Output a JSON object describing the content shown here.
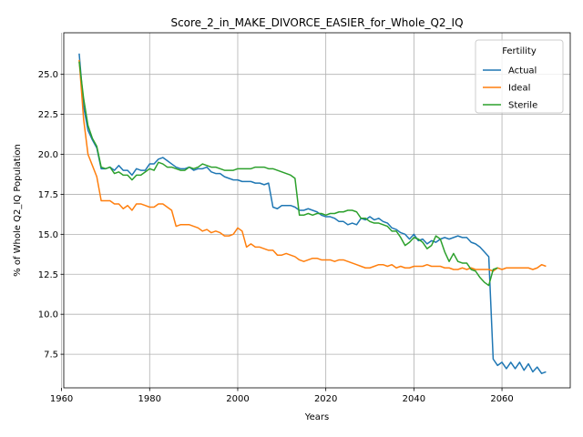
{
  "chart_data": {
    "type": "line",
    "title": "Score_2_in_MAKE_DIVORCE_EASIER_for_Whole_Q2_IQ",
    "xlabel": "Years",
    "ylabel": "% of Whole Q2_IQ Population",
    "xlim": [
      1960.5,
      2075.5
    ],
    "ylim": [
      5.4,
      27.6
    ],
    "xticks": [
      1960,
      1980,
      2000,
      2020,
      2040,
      2060
    ],
    "yticks": [
      7.5,
      10.0,
      12.5,
      15.0,
      17.5,
      20.0,
      22.5,
      25.0
    ],
    "ytick_labels": [
      "7.5",
      "10.0",
      "12.5",
      "15.0",
      "17.5",
      "20.0",
      "22.5",
      "25.0"
    ],
    "grid": true,
    "legend": {
      "title": "Fertility",
      "placement": "top-right"
    },
    "series": [
      {
        "name": "Actual",
        "color": "#1f77b4",
        "points": [
          [
            1964,
            26.3
          ],
          [
            1965,
            23.0
          ],
          [
            1966,
            21.5
          ],
          [
            1967,
            20.9
          ],
          [
            1968,
            20.4
          ],
          [
            1969,
            19.1
          ],
          [
            1970,
            19.1
          ],
          [
            1971,
            19.2
          ],
          [
            1972,
            19.0
          ],
          [
            1973,
            19.3
          ],
          [
            1974,
            19.0
          ],
          [
            1975,
            19.0
          ],
          [
            1976,
            18.7
          ],
          [
            1977,
            19.1
          ],
          [
            1978,
            19.0
          ],
          [
            1979,
            19.0
          ],
          [
            1980,
            19.4
          ],
          [
            1981,
            19.4
          ],
          [
            1982,
            19.7
          ],
          [
            1983,
            19.8
          ],
          [
            1984,
            19.6
          ],
          [
            1985,
            19.4
          ],
          [
            1986,
            19.2
          ],
          [
            1987,
            19.1
          ],
          [
            1988,
            19.1
          ],
          [
            1989,
            19.2
          ],
          [
            1990,
            19.0
          ],
          [
            1991,
            19.1
          ],
          [
            1992,
            19.1
          ],
          [
            1993,
            19.2
          ],
          [
            1994,
            18.9
          ],
          [
            1995,
            18.8
          ],
          [
            1996,
            18.8
          ],
          [
            1997,
            18.6
          ],
          [
            1998,
            18.5
          ],
          [
            1999,
            18.4
          ],
          [
            2000,
            18.4
          ],
          [
            2001,
            18.3
          ],
          [
            2002,
            18.3
          ],
          [
            2003,
            18.3
          ],
          [
            2004,
            18.2
          ],
          [
            2005,
            18.2
          ],
          [
            2006,
            18.1
          ],
          [
            2007,
            18.2
          ],
          [
            2008,
            16.7
          ],
          [
            2009,
            16.6
          ],
          [
            2010,
            16.8
          ],
          [
            2011,
            16.8
          ],
          [
            2012,
            16.8
          ],
          [
            2013,
            16.7
          ],
          [
            2014,
            16.5
          ],
          [
            2015,
            16.5
          ],
          [
            2016,
            16.6
          ],
          [
            2017,
            16.5
          ],
          [
            2018,
            16.4
          ],
          [
            2019,
            16.2
          ],
          [
            2020,
            16.1
          ],
          [
            2021,
            16.1
          ],
          [
            2022,
            16.0
          ],
          [
            2023,
            15.8
          ],
          [
            2024,
            15.8
          ],
          [
            2025,
            15.6
          ],
          [
            2026,
            15.7
          ],
          [
            2027,
            15.6
          ],
          [
            2028,
            16.0
          ],
          [
            2029,
            15.9
          ],
          [
            2030,
            16.1
          ],
          [
            2031,
            15.9
          ],
          [
            2032,
            16.0
          ],
          [
            2033,
            15.8
          ],
          [
            2034,
            15.7
          ],
          [
            2035,
            15.4
          ],
          [
            2036,
            15.3
          ],
          [
            2037,
            15.1
          ],
          [
            2038,
            15.0
          ],
          [
            2039,
            14.7
          ],
          [
            2040,
            15.0
          ],
          [
            2041,
            14.6
          ],
          [
            2042,
            14.7
          ],
          [
            2043,
            14.4
          ],
          [
            2044,
            14.6
          ],
          [
            2045,
            14.5
          ],
          [
            2046,
            14.7
          ],
          [
            2047,
            14.8
          ],
          [
            2048,
            14.7
          ],
          [
            2049,
            14.8
          ],
          [
            2050,
            14.9
          ],
          [
            2051,
            14.8
          ],
          [
            2052,
            14.8
          ],
          [
            2053,
            14.5
          ],
          [
            2054,
            14.4
          ],
          [
            2055,
            14.2
          ],
          [
            2056,
            13.9
          ],
          [
            2057,
            13.6
          ],
          [
            2058,
            7.2
          ],
          [
            2059,
            6.8
          ],
          [
            2060,
            7.0
          ],
          [
            2061,
            6.6
          ],
          [
            2062,
            7.0
          ],
          [
            2063,
            6.6
          ],
          [
            2064,
            7.0
          ],
          [
            2065,
            6.5
          ],
          [
            2066,
            6.9
          ],
          [
            2067,
            6.4
          ],
          [
            2068,
            6.7
          ],
          [
            2069,
            6.3
          ],
          [
            2070,
            6.4
          ]
        ]
      },
      {
        "name": "Ideal",
        "color": "#ff7f0e",
        "points": [
          [
            1964,
            25.9
          ],
          [
            1965,
            22.2
          ],
          [
            1966,
            20.0
          ],
          [
            1967,
            19.3
          ],
          [
            1968,
            18.6
          ],
          [
            1969,
            17.1
          ],
          [
            1970,
            17.1
          ],
          [
            1971,
            17.1
          ],
          [
            1972,
            16.9
          ],
          [
            1973,
            16.9
          ],
          [
            1974,
            16.6
          ],
          [
            1975,
            16.8
          ],
          [
            1976,
            16.5
          ],
          [
            1977,
            16.9
          ],
          [
            1978,
            16.9
          ],
          [
            1979,
            16.8
          ],
          [
            1980,
            16.7
          ],
          [
            1981,
            16.7
          ],
          [
            1982,
            16.9
          ],
          [
            1983,
            16.9
          ],
          [
            1984,
            16.7
          ],
          [
            1985,
            16.5
          ],
          [
            1986,
            15.5
          ],
          [
            1987,
            15.6
          ],
          [
            1988,
            15.6
          ],
          [
            1989,
            15.6
          ],
          [
            1990,
            15.5
          ],
          [
            1991,
            15.4
          ],
          [
            1992,
            15.2
          ],
          [
            1993,
            15.3
          ],
          [
            1994,
            15.1
          ],
          [
            1995,
            15.2
          ],
          [
            1996,
            15.1
          ],
          [
            1997,
            14.9
          ],
          [
            1998,
            14.9
          ],
          [
            1999,
            15.0
          ],
          [
            2000,
            15.4
          ],
          [
            2001,
            15.2
          ],
          [
            2002,
            14.2
          ],
          [
            2003,
            14.4
          ],
          [
            2004,
            14.2
          ],
          [
            2005,
            14.2
          ],
          [
            2006,
            14.1
          ],
          [
            2007,
            14.0
          ],
          [
            2008,
            14.0
          ],
          [
            2009,
            13.7
          ],
          [
            2010,
            13.7
          ],
          [
            2011,
            13.8
          ],
          [
            2012,
            13.7
          ],
          [
            2013,
            13.6
          ],
          [
            2014,
            13.4
          ],
          [
            2015,
            13.3
          ],
          [
            2016,
            13.4
          ],
          [
            2017,
            13.5
          ],
          [
            2018,
            13.5
          ],
          [
            2019,
            13.4
          ],
          [
            2020,
            13.4
          ],
          [
            2021,
            13.4
          ],
          [
            2022,
            13.3
          ],
          [
            2023,
            13.4
          ],
          [
            2024,
            13.4
          ],
          [
            2025,
            13.3
          ],
          [
            2026,
            13.2
          ],
          [
            2027,
            13.1
          ],
          [
            2028,
            13.0
          ],
          [
            2029,
            12.9
          ],
          [
            2030,
            12.9
          ],
          [
            2031,
            13.0
          ],
          [
            2032,
            13.1
          ],
          [
            2033,
            13.1
          ],
          [
            2034,
            13.0
          ],
          [
            2035,
            13.1
          ],
          [
            2036,
            12.9
          ],
          [
            2037,
            13.0
          ],
          [
            2038,
            12.9
          ],
          [
            2039,
            12.9
          ],
          [
            2040,
            13.0
          ],
          [
            2041,
            13.0
          ],
          [
            2042,
            13.0
          ],
          [
            2043,
            13.1
          ],
          [
            2044,
            13.0
          ],
          [
            2045,
            13.0
          ],
          [
            2046,
            13.0
          ],
          [
            2047,
            12.9
          ],
          [
            2048,
            12.9
          ],
          [
            2049,
            12.8
          ],
          [
            2050,
            12.8
          ],
          [
            2051,
            12.9
          ],
          [
            2052,
            12.8
          ],
          [
            2053,
            12.9
          ],
          [
            2054,
            12.8
          ],
          [
            2055,
            12.8
          ],
          [
            2056,
            12.8
          ],
          [
            2057,
            12.8
          ],
          [
            2058,
            12.7
          ],
          [
            2059,
            12.9
          ],
          [
            2060,
            12.8
          ],
          [
            2061,
            12.9
          ],
          [
            2062,
            12.9
          ],
          [
            2063,
            12.9
          ],
          [
            2064,
            12.9
          ],
          [
            2065,
            12.9
          ],
          [
            2066,
            12.9
          ],
          [
            2067,
            12.8
          ],
          [
            2068,
            12.9
          ],
          [
            2069,
            13.1
          ],
          [
            2070,
            13.0
          ]
        ]
      },
      {
        "name": "Sterile",
        "color": "#2ca02c",
        "points": [
          [
            1964,
            25.8
          ],
          [
            1965,
            23.5
          ],
          [
            1966,
            21.8
          ],
          [
            1967,
            21.0
          ],
          [
            1968,
            20.5
          ],
          [
            1969,
            19.2
          ],
          [
            1970,
            19.1
          ],
          [
            1971,
            19.2
          ],
          [
            1972,
            18.8
          ],
          [
            1973,
            18.9
          ],
          [
            1974,
            18.7
          ],
          [
            1975,
            18.7
          ],
          [
            1976,
            18.4
          ],
          [
            1977,
            18.7
          ],
          [
            1978,
            18.7
          ],
          [
            1979,
            18.9
          ],
          [
            1980,
            19.1
          ],
          [
            1981,
            19.0
          ],
          [
            1982,
            19.5
          ],
          [
            1983,
            19.4
          ],
          [
            1984,
            19.2
          ],
          [
            1985,
            19.2
          ],
          [
            1986,
            19.1
          ],
          [
            1987,
            19.0
          ],
          [
            1988,
            19.0
          ],
          [
            1989,
            19.2
          ],
          [
            1990,
            19.1
          ],
          [
            1991,
            19.2
          ],
          [
            1992,
            19.4
          ],
          [
            1993,
            19.3
          ],
          [
            1994,
            19.2
          ],
          [
            1995,
            19.2
          ],
          [
            1996,
            19.1
          ],
          [
            1997,
            19.0
          ],
          [
            1998,
            19.0
          ],
          [
            1999,
            19.0
          ],
          [
            2000,
            19.1
          ],
          [
            2001,
            19.1
          ],
          [
            2002,
            19.1
          ],
          [
            2003,
            19.1
          ],
          [
            2004,
            19.2
          ],
          [
            2005,
            19.2
          ],
          [
            2006,
            19.2
          ],
          [
            2007,
            19.1
          ],
          [
            2008,
            19.1
          ],
          [
            2009,
            19.0
          ],
          [
            2010,
            18.9
          ],
          [
            2011,
            18.8
          ],
          [
            2012,
            18.7
          ],
          [
            2013,
            18.5
          ],
          [
            2014,
            16.2
          ],
          [
            2015,
            16.2
          ],
          [
            2016,
            16.3
          ],
          [
            2017,
            16.2
          ],
          [
            2018,
            16.3
          ],
          [
            2019,
            16.3
          ],
          [
            2020,
            16.2
          ],
          [
            2021,
            16.3
          ],
          [
            2022,
            16.3
          ],
          [
            2023,
            16.4
          ],
          [
            2024,
            16.4
          ],
          [
            2025,
            16.5
          ],
          [
            2026,
            16.5
          ],
          [
            2027,
            16.4
          ],
          [
            2028,
            16.0
          ],
          [
            2029,
            16.0
          ],
          [
            2030,
            15.8
          ],
          [
            2031,
            15.7
          ],
          [
            2032,
            15.7
          ],
          [
            2033,
            15.6
          ],
          [
            2034,
            15.5
          ],
          [
            2035,
            15.2
          ],
          [
            2036,
            15.2
          ],
          [
            2037,
            14.8
          ],
          [
            2038,
            14.3
          ],
          [
            2039,
            14.5
          ],
          [
            2040,
            14.8
          ],
          [
            2041,
            14.7
          ],
          [
            2042,
            14.5
          ],
          [
            2043,
            14.1
          ],
          [
            2044,
            14.3
          ],
          [
            2045,
            14.9
          ],
          [
            2046,
            14.7
          ],
          [
            2047,
            13.9
          ],
          [
            2048,
            13.3
          ],
          [
            2049,
            13.8
          ],
          [
            2050,
            13.3
          ],
          [
            2051,
            13.2
          ],
          [
            2052,
            13.2
          ],
          [
            2053,
            12.8
          ],
          [
            2054,
            12.7
          ],
          [
            2055,
            12.3
          ],
          [
            2056,
            12.0
          ],
          [
            2057,
            11.8
          ],
          [
            2058,
            12.8
          ],
          [
            2059,
            12.9
          ]
        ]
      }
    ]
  }
}
